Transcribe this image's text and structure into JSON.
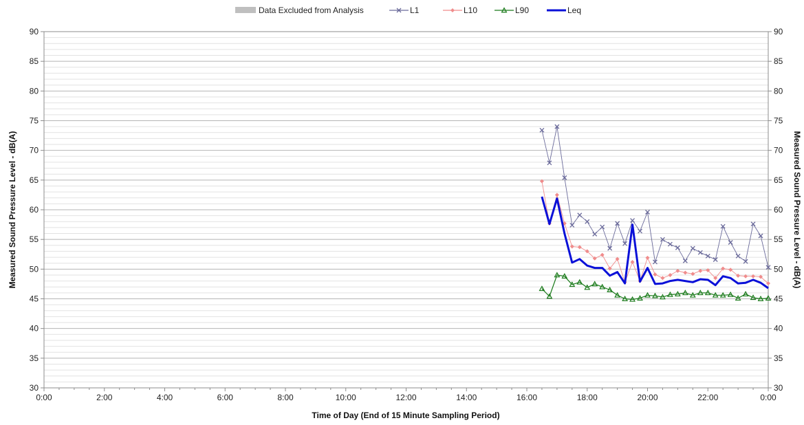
{
  "chart_data": {
    "type": "line",
    "xlabel": "Time of Day (End of 15 Minute Sampling Period)",
    "ylabel_left": "Measured Sound Pressure Level - dB(A)",
    "ylabel_right": "Measured Sound Pressure Level - dB(A)",
    "ylim": [
      30,
      90
    ],
    "y_ticks": [
      30,
      35,
      40,
      45,
      50,
      55,
      60,
      65,
      70,
      75,
      80,
      85,
      90
    ],
    "xlim_hours": [
      0,
      24
    ],
    "x_tick_hours": [
      0,
      2,
      4,
      6,
      8,
      10,
      12,
      14,
      16,
      18,
      20,
      22,
      24
    ],
    "x_tick_labels": [
      "0:00",
      "2:00",
      "4:00",
      "6:00",
      "8:00",
      "10:00",
      "12:00",
      "14:00",
      "16:00",
      "18:00",
      "20:00",
      "22:00",
      "0:00"
    ],
    "grid": true,
    "legend_position": "top",
    "legend": {
      "excluded_label": "Data Excluded from Analysis",
      "excluded_color": "#bfbfbf"
    },
    "x_hours": [
      16.5,
      16.75,
      17,
      17.25,
      17.5,
      17.75,
      18,
      18.25,
      18.5,
      18.75,
      19,
      19.25,
      19.5,
      19.75,
      20,
      20.25,
      20.5,
      20.75,
      21,
      21.25,
      21.5,
      21.75,
      22,
      22.25,
      22.5,
      22.75,
      23,
      23.25,
      23.5,
      23.75,
      24
    ],
    "series": [
      {
        "name": "L1",
        "color": "#6a6a9a",
        "marker": "x",
        "values": [
          73.4,
          67.9,
          74.0,
          65.4,
          57.4,
          59.1,
          58.0,
          55.9,
          57.1,
          53.5,
          57.7,
          54.3,
          58.2,
          56.4,
          59.6,
          51.2,
          55.0,
          54.2,
          53.6,
          51.4,
          53.5,
          52.8,
          52.2,
          51.6,
          57.2,
          54.5,
          52.2,
          51.3,
          57.6,
          55.6,
          50.3
        ]
      },
      {
        "name": "L10",
        "color": "#f08c8c",
        "marker": "diamond",
        "values": [
          64.8,
          57.7,
          62.5,
          57.7,
          53.8,
          53.7,
          53.0,
          51.8,
          52.4,
          50.1,
          51.7,
          47.8,
          51.2,
          48.0,
          51.9,
          49.1,
          48.5,
          49.0,
          49.7,
          49.4,
          49.2,
          49.7,
          49.8,
          48.5,
          50.1,
          49.9,
          48.9,
          48.8,
          48.8,
          48.7,
          47.6
        ]
      },
      {
        "name": "L90",
        "color": "#1a7a1a",
        "marker": "triangle",
        "values": [
          46.7,
          45.4,
          49.0,
          48.8,
          47.4,
          47.8,
          46.9,
          47.5,
          47.0,
          46.5,
          45.6,
          45.0,
          44.9,
          45.1,
          45.6,
          45.5,
          45.3,
          45.7,
          45.8,
          46.0,
          45.6,
          46.0,
          46.0,
          45.6,
          45.6,
          45.7,
          45.1,
          45.8,
          45.2,
          45.0,
          45.1
        ]
      },
      {
        "name": "Leq",
        "color": "#0a10d8",
        "marker": "none",
        "values": [
          62.2,
          57.6,
          61.9,
          56.0,
          51.1,
          51.7,
          50.6,
          50.2,
          50.2,
          48.9,
          49.5,
          47.6,
          57.5,
          47.9,
          50.2,
          47.5,
          47.6,
          48.0,
          48.2,
          48.0,
          47.8,
          48.3,
          48.2,
          47.3,
          48.8,
          48.5,
          47.6,
          47.7,
          48.2,
          47.7,
          46.8
        ]
      }
    ]
  }
}
